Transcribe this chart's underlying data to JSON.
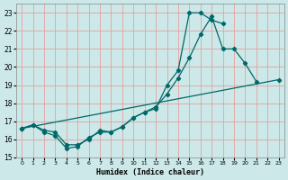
{
  "xlabel": "Humidex (Indice chaleur)",
  "bg_color": "#cce8e8",
  "grid_color": "#e8a0a0",
  "line_color": "#006868",
  "xlim": [
    -0.5,
    23.5
  ],
  "ylim": [
    15,
    23.5
  ],
  "yticks": [
    15,
    16,
    17,
    18,
    19,
    20,
    21,
    22,
    23
  ],
  "xticks": [
    0,
    1,
    2,
    3,
    4,
    5,
    6,
    7,
    8,
    9,
    10,
    11,
    12,
    13,
    14,
    15,
    16,
    17,
    18,
    19,
    20,
    21,
    22,
    23
  ],
  "line1_x": [
    0,
    1,
    2,
    3,
    4,
    5,
    6,
    7,
    8,
    9,
    10,
    11,
    12,
    13,
    14,
    15,
    16,
    17,
    18
  ],
  "line1_y": [
    16.6,
    16.8,
    16.4,
    16.2,
    15.5,
    15.6,
    16.1,
    16.4,
    16.4,
    16.7,
    17.2,
    17.5,
    17.7,
    19.0,
    19.8,
    23.0,
    23.0,
    22.6,
    22.4
  ],
  "line2_x": [
    0,
    1,
    2,
    3,
    4,
    5,
    6,
    7,
    8,
    9,
    10,
    11,
    12,
    13,
    14,
    15,
    16,
    17,
    18,
    19,
    20,
    21
  ],
  "line2_y": [
    16.6,
    16.8,
    16.5,
    16.4,
    15.7,
    15.7,
    16.0,
    16.5,
    16.4,
    16.7,
    17.2,
    17.5,
    17.8,
    18.5,
    19.4,
    20.5,
    21.8,
    22.8,
    21.0,
    21.0,
    20.2,
    19.2
  ],
  "line3_x": [
    0,
    23
  ],
  "line3_y": [
    16.6,
    19.3
  ]
}
